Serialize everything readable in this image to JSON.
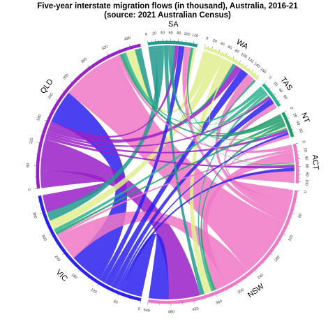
{
  "chart_data": {
    "type": "chord",
    "title": "Five-year interstate migration flows (in thousand), Australia, 2016-21",
    "subtitle": "(source: 2021 Australian Census)",
    "units": "thousand",
    "sectors": [
      {
        "name": "NSW",
        "color": "#ee77c6",
        "out_first": true,
        "order": [
          "ACT",
          "NT",
          "TAS",
          "WA",
          "SA",
          "QLD",
          "VIC"
        ]
      },
      {
        "name": "VIC",
        "color": "#2b20ee",
        "out_first": true,
        "order": [
          "NSW",
          "ACT",
          "NT",
          "TAS",
          "WA",
          "SA",
          "QLD"
        ]
      },
      {
        "name": "QLD",
        "color": "#9a20c8",
        "out_first": true,
        "order": [
          "VIC",
          "NSW",
          "ACT",
          "NT",
          "TAS",
          "WA",
          "SA"
        ]
      },
      {
        "name": "SA",
        "color": "#229a8e",
        "out_first": true,
        "order": [
          "QLD",
          "VIC",
          "NSW",
          "ACT",
          "NT",
          "TAS",
          "WA"
        ]
      },
      {
        "name": "WA",
        "color": "#e0ef90",
        "out_first": true,
        "order": [
          "SA",
          "QLD",
          "VIC",
          "NSW",
          "ACT",
          "NT",
          "TAS"
        ]
      },
      {
        "name": "TAS",
        "color": "#2bb392",
        "out_first": true,
        "order": [
          "WA",
          "SA",
          "QLD",
          "VIC",
          "NSW",
          "ACT",
          "NT"
        ]
      },
      {
        "name": "NT",
        "color": "#1f9e6a",
        "out_first": true,
        "order": [
          "TAS",
          "WA",
          "SA",
          "QLD",
          "VIC",
          "NSW",
          "ACT"
        ]
      },
      {
        "name": "ACT",
        "color": "#ee77c6",
        "out_first": true,
        "order": [
          "NT",
          "TAS",
          "WA",
          "SA",
          "QLD",
          "VIC",
          "NSW"
        ]
      }
    ],
    "flows": [
      {
        "from": "NSW",
        "to": "VIC",
        "value": 70
      },
      {
        "from": "NSW",
        "to": "QLD",
        "value": 165
      },
      {
        "from": "NSW",
        "to": "SA",
        "value": 16
      },
      {
        "from": "NSW",
        "to": "WA",
        "value": 22
      },
      {
        "from": "NSW",
        "to": "TAS",
        "value": 12
      },
      {
        "from": "NSW",
        "to": "NT",
        "value": 8
      },
      {
        "from": "NSW",
        "to": "ACT",
        "value": 32
      },
      {
        "from": "VIC",
        "to": "NSW",
        "value": 55
      },
      {
        "from": "VIC",
        "to": "QLD",
        "value": 90
      },
      {
        "from": "VIC",
        "to": "SA",
        "value": 16
      },
      {
        "from": "VIC",
        "to": "WA",
        "value": 22
      },
      {
        "from": "VIC",
        "to": "TAS",
        "value": 16
      },
      {
        "from": "VIC",
        "to": "NT",
        "value": 6
      },
      {
        "from": "VIC",
        "to": "ACT",
        "value": 9
      },
      {
        "from": "QLD",
        "to": "NSW",
        "value": 85
      },
      {
        "from": "QLD",
        "to": "VIC",
        "value": 48
      },
      {
        "from": "QLD",
        "to": "SA",
        "value": 10
      },
      {
        "from": "QLD",
        "to": "WA",
        "value": 18
      },
      {
        "from": "QLD",
        "to": "TAS",
        "value": 7
      },
      {
        "from": "QLD",
        "to": "NT",
        "value": 8
      },
      {
        "from": "QLD",
        "to": "ACT",
        "value": 8
      },
      {
        "from": "SA",
        "to": "NSW",
        "value": 12
      },
      {
        "from": "SA",
        "to": "VIC",
        "value": 24
      },
      {
        "from": "SA",
        "to": "QLD",
        "value": 18
      },
      {
        "from": "SA",
        "to": "WA",
        "value": 9
      },
      {
        "from": "SA",
        "to": "TAS",
        "value": 2
      },
      {
        "from": "SA",
        "to": "NT",
        "value": 5
      },
      {
        "from": "SA",
        "to": "ACT",
        "value": 2
      },
      {
        "from": "WA",
        "to": "NSW",
        "value": 20
      },
      {
        "from": "WA",
        "to": "VIC",
        "value": 25
      },
      {
        "from": "WA",
        "to": "QLD",
        "value": 25
      },
      {
        "from": "WA",
        "to": "SA",
        "value": 8
      },
      {
        "from": "WA",
        "to": "TAS",
        "value": 3
      },
      {
        "from": "WA",
        "to": "NT",
        "value": 4
      },
      {
        "from": "WA",
        "to": "ACT",
        "value": 2
      },
      {
        "from": "TAS",
        "to": "NSW",
        "value": 6
      },
      {
        "from": "TAS",
        "to": "VIC",
        "value": 10
      },
      {
        "from": "TAS",
        "to": "QLD",
        "value": 8
      },
      {
        "from": "TAS",
        "to": "SA",
        "value": 2
      },
      {
        "from": "TAS",
        "to": "WA",
        "value": 2
      },
      {
        "from": "TAS",
        "to": "NT",
        "value": 1
      },
      {
        "from": "TAS",
        "to": "ACT",
        "value": 1
      },
      {
        "from": "NT",
        "to": "NSW",
        "value": 7
      },
      {
        "from": "NT",
        "to": "VIC",
        "value": 7
      },
      {
        "from": "NT",
        "to": "QLD",
        "value": 10
      },
      {
        "from": "NT",
        "to": "SA",
        "value": 6
      },
      {
        "from": "NT",
        "to": "WA",
        "value": 4
      },
      {
        "from": "NT",
        "to": "TAS",
        "value": 1
      },
      {
        "from": "NT",
        "to": "ACT",
        "value": 1
      },
      {
        "from": "ACT",
        "to": "NSW",
        "value": 30
      },
      {
        "from": "ACT",
        "to": "VIC",
        "value": 7
      },
      {
        "from": "ACT",
        "to": "QLD",
        "value": 8
      },
      {
        "from": "ACT",
        "to": "SA",
        "value": 1
      },
      {
        "from": "ACT",
        "to": "WA",
        "value": 1
      },
      {
        "from": "ACT",
        "to": "TAS",
        "value": 1
      },
      {
        "from": "ACT",
        "to": "NT",
        "value": 1
      }
    ],
    "layout": {
      "start_degree_nsw": 8,
      "gap_degree": 3.2,
      "tick_step_major": 60,
      "tick_step_small_sectors": 20
    }
  }
}
